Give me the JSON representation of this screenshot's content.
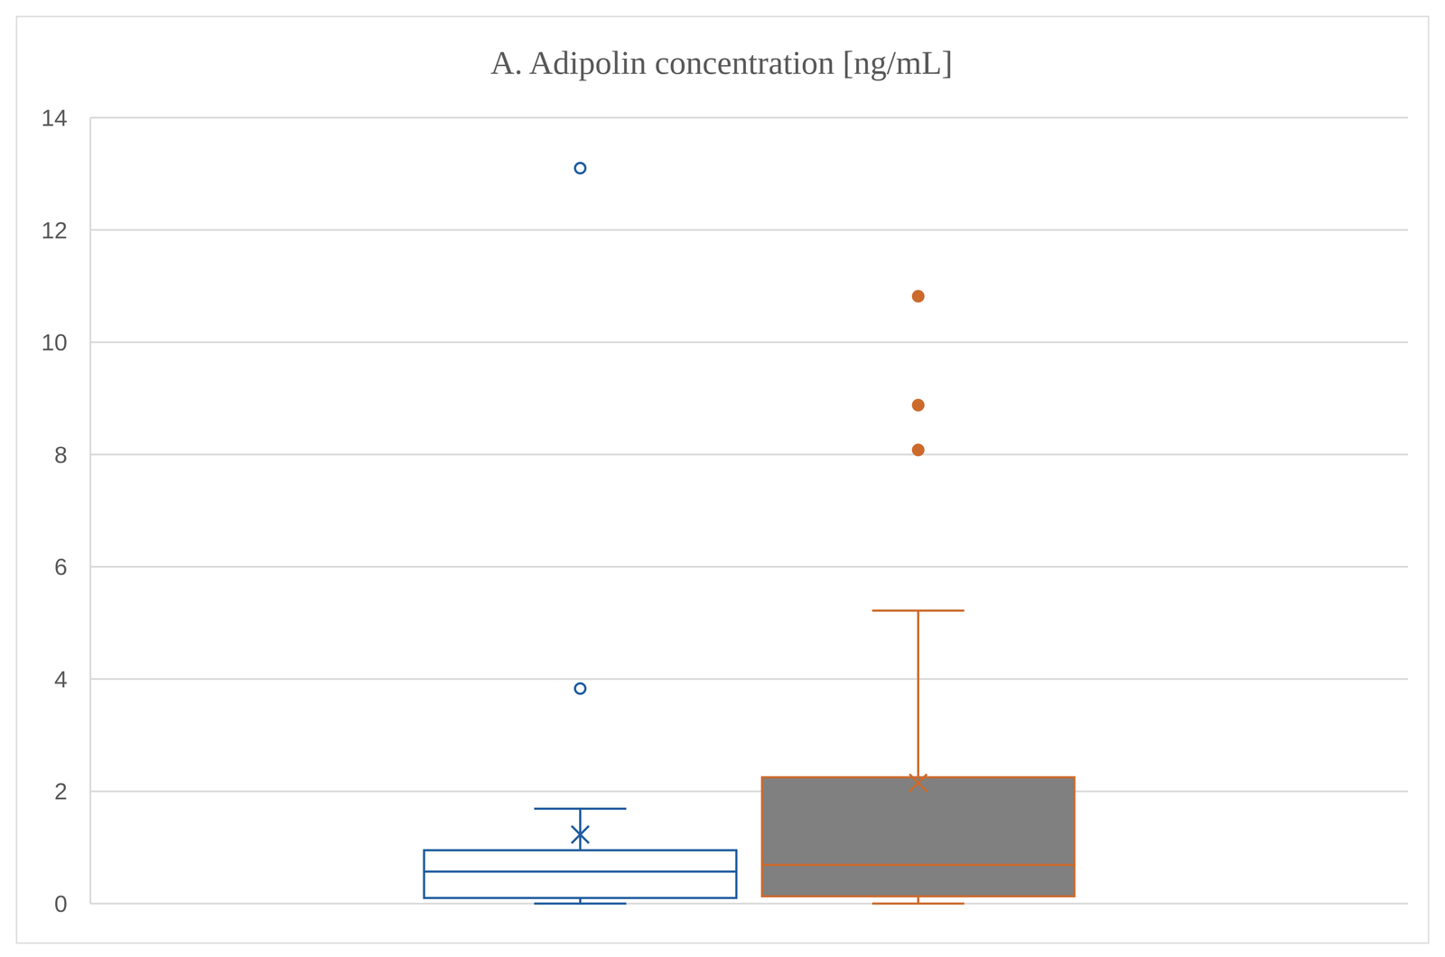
{
  "chart_data": {
    "type": "box",
    "title": "A. Adipolin concentration [ng/mL]",
    "ylim": [
      0,
      14
    ],
    "yticks": [
      0,
      2,
      4,
      6,
      8,
      10,
      12,
      14
    ],
    "grid": true,
    "series": [
      {
        "color": "#1f5c9e",
        "marker": "circle-open",
        "min": 0,
        "q1": 0.1,
        "median": 0.57,
        "q3": 0.95,
        "max": 1.69,
        "mean": 1.23,
        "outliers": [
          3.83,
          13.1
        ]
      },
      {
        "colors": [
          "#cc6a2c",
          "#808080"
        ],
        "marker": "circle",
        "min": 0,
        "q1": 0.13,
        "median": 0.69,
        "q3": 2.25,
        "max": 5.22,
        "mean": 2.15,
        "outliers": [
          8.08,
          8.88,
          10.82
        ]
      }
    ]
  }
}
